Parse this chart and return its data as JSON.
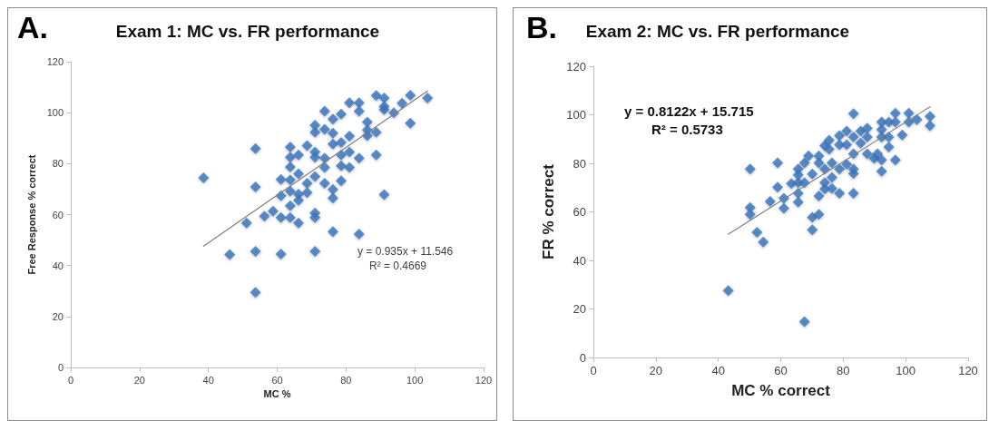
{
  "chart_data": [
    {
      "type": "scatter",
      "title": "Exam 1: MC vs. FR performance",
      "xlabel": "MC %",
      "ylabel": "Free Response % correct",
      "annotations": [
        "A.",
        "y = 0.935x + 11.546",
        "R² = 0.4669"
      ],
      "marker": "diamond",
      "xlim": [
        0,
        120
      ],
      "xticks": [
        0,
        20,
        40,
        60,
        80,
        100,
        120
      ],
      "ylim": [
        0,
        120
      ],
      "yticks": [
        0,
        20,
        40,
        60,
        80,
        100,
        120
      ],
      "series": [
        {
          "color": "#3a74bd",
          "x": [
            38.6,
            46.2,
            51.1,
            53.7,
            53.7,
            53.7,
            53.7,
            56.3,
            58.8,
            61.1,
            61.1,
            61.1,
            61.1,
            63.8,
            63.8,
            63.8,
            63.8,
            63.8,
            63.8,
            63.8,
            66.2,
            66.2,
            66.2,
            66.2,
            66.2,
            68.7,
            68.7,
            68.7,
            71.0,
            71.0,
            71.0,
            71.0,
            71.0,
            71.0,
            71.0,
            71.0,
            73.8,
            73.8,
            73.8,
            73.8,
            73.8,
            76.2,
            76.2,
            76.2,
            76.2,
            76.2,
            76.2,
            78.6,
            78.6,
            78.6,
            78.6,
            78.6,
            81.0,
            81.0,
            81.0,
            81.0,
            83.8,
            83.8,
            83.8,
            83.8,
            86.2,
            86.2,
            86.2,
            88.8,
            88.8,
            88.8,
            91.1,
            91.1,
            91.1,
            91.1,
            93.9,
            96.3,
            98.7,
            98.7,
            103.7
          ],
          "values": [
            74.4,
            44.3,
            56.7,
            85.9,
            70.9,
            45.6,
            29.5,
            59.4,
            61.3,
            73.8,
            67.4,
            58.8,
            44.5,
            86.5,
            82.5,
            78.7,
            73.6,
            69.2,
            63.5,
            58.8,
            83.4,
            76.0,
            68.0,
            65.6,
            56.7,
            87.1,
            72.3,
            68.6,
            95.1,
            92.3,
            84.6,
            82.5,
            75.0,
            60.6,
            58.8,
            45.6,
            100.6,
            93.5,
            82.2,
            78.5,
            72.3,
            97.5,
            92.0,
            87.7,
            69.9,
            66.5,
            53.3,
            99.4,
            88.3,
            83.4,
            79.1,
            73.3,
            103.9,
            90.8,
            84.6,
            78.5,
            103.9,
            100.6,
            82.2,
            52.3,
            96.3,
            93.2,
            91.0,
            106.7,
            92.3,
            83.4,
            105.8,
            102.5,
            101.2,
            67.8,
            100.0,
            103.7,
            106.8,
            95.9,
            105.8
          ]
        },
        {
          "type": "line",
          "color": "#7f7f7f",
          "marker": "none",
          "x": [
            38.6,
            103.7
          ],
          "values": [
            47.6,
            108.5
          ]
        }
      ]
    },
    {
      "type": "scatter",
      "title": "Exam 2: MC vs. FR performance",
      "xlabel": "MC % correct",
      "ylabel": "FR % correct",
      "annotations": [
        "B.",
        "y = 0.8122x + 15.715",
        "R² = 0.5733"
      ],
      "marker": "diamond",
      "xlim": [
        0,
        120
      ],
      "xticks": [
        0,
        20,
        40,
        60,
        80,
        100,
        120
      ],
      "ylim": [
        0,
        120
      ],
      "yticks": [
        0,
        20,
        40,
        60,
        80,
        100,
        120
      ],
      "series": [
        {
          "color": "#3a74bd",
          "x": [
            43.2,
            67.6,
            50.2,
            50.2,
            50.2,
            52.4,
            54.4,
            56.6,
            59.0,
            59.0,
            61.0,
            61.0,
            63.4,
            65.6,
            65.6,
            65.6,
            65.6,
            65.6,
            67.6,
            67.6,
            68.9,
            70.1,
            70.1,
            70.1,
            72.2,
            72.2,
            72.2,
            72.2,
            74.1,
            74.1,
            74.1,
            74.1,
            75.5,
            75.5,
            76.4,
            76.4,
            76.4,
            78.8,
            78.8,
            78.8,
            78.8,
            81.1,
            81.1,
            81.1,
            83.3,
            83.3,
            83.3,
            83.3,
            83.3,
            83.3,
            85.6,
            85.6,
            87.7,
            87.7,
            87.7,
            89.9,
            91.0,
            92.3,
            92.3,
            92.3,
            92.3,
            92.3,
            94.6,
            94.6,
            94.6,
            96.7,
            96.7,
            96.7,
            98.9,
            101.0,
            101.0,
            103.6,
            107.8,
            107.8
          ],
          "values": [
            27.6,
            14.8,
            77.7,
            61.8,
            59.0,
            51.6,
            47.6,
            64.3,
            80.2,
            70.2,
            65.6,
            61.5,
            71.7,
            77.7,
            75.2,
            72.1,
            67.7,
            64.0,
            80.2,
            72.1,
            83.1,
            75.6,
            57.8,
            52.6,
            83.1,
            80.2,
            66.5,
            59.0,
            87.3,
            77.7,
            72.1,
            69.4,
            89.5,
            85.8,
            80.2,
            74.2,
            69.6,
            91.4,
            87.7,
            77.7,
            67.7,
            93.3,
            87.7,
            79.6,
            100.5,
            90.8,
            83.9,
            77.7,
            75.8,
            67.7,
            93.3,
            88.3,
            94.5,
            90.8,
            83.9,
            82.1,
            83.9,
            97.0,
            93.9,
            90.8,
            81.4,
            76.7,
            97.0,
            90.8,
            86.7,
            100.7,
            97.0,
            81.4,
            91.7,
            100.7,
            97.0,
            98.0,
            99.3,
            95.5
          ]
        },
        {
          "type": "line",
          "color": "#7f7f7f",
          "marker": "none",
          "x": [
            43.2,
            107.8
          ],
          "values": [
            50.8,
            103.3
          ]
        }
      ]
    }
  ]
}
